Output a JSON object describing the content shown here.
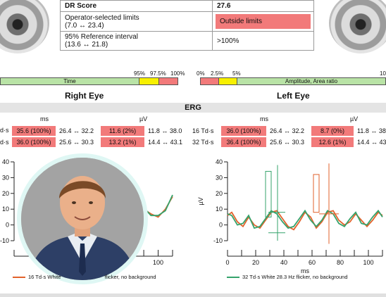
{
  "dr_table": {
    "rows": [
      {
        "label": "DR Score",
        "label_sub": "",
        "value": "27.6",
        "status": "normal"
      },
      {
        "label": "Operator-selected limits",
        "label_sub": "(7.0 ↔ 23.4)",
        "value": "Outside limits",
        "status": "outside"
      },
      {
        "label": "95% Reference interval",
        "label_sub": "(13.6 ↔ 21.8)",
        "value": ">100%",
        "status": "normal"
      }
    ]
  },
  "scales": {
    "left": {
      "ticks": [
        "95%",
        "97.5%",
        "100%"
      ],
      "label": "Time"
    },
    "right": {
      "ticks": [
        "0%",
        "2.5%",
        "5%",
        "10"
      ],
      "label": "Amplitude, Area ratio"
    }
  },
  "headings": {
    "right_eye": "Right Eye",
    "left_eye": "Left Eye",
    "erg": "ERG"
  },
  "erg": {
    "col_ms": "ms",
    "col_uv": "µV",
    "right_rows": [
      {
        "stim": "d·s",
        "ms": "35.6 (100%)",
        "ms_range": "26.4 ↔ 32.2",
        "uv": "11.6 (2%)",
        "uv_range": "11.8 ↔ 38.0"
      },
      {
        "stim": "d·s",
        "ms": "36.0 (100%)",
        "ms_range": "25.6 ↔ 30.3",
        "uv": "13.2 (1%)",
        "uv_range": "14.4 ↔ 43.1"
      }
    ],
    "left_rows": [
      {
        "stim": "16 Td·s",
        "ms": "36.0 (100%)",
        "ms_range": "26.4 ↔ 32.2",
        "uv": "8.7 (0%)",
        "uv_range": "11.8 ↔ 38"
      },
      {
        "stim": "32 Td·s",
        "ms": "36.4 (100%)",
        "ms_range": "25.6 ↔ 30.3",
        "uv": "12.6 (1%)",
        "uv_range": "14.4 ↔ 43"
      }
    ]
  },
  "chart_data": [
    {
      "type": "line",
      "title": "",
      "xlabel": "",
      "ylabel": "",
      "xlim": [
        0,
        110
      ],
      "ylim": [
        -10,
        40
      ],
      "yticks": [
        40,
        30,
        20,
        10,
        0,
        -10
      ],
      "xticks": [
        100
      ],
      "series": [
        {
          "name": "16 Td·s White",
          "color": "#e2622b",
          "x": [
            80,
            85,
            90,
            95,
            100,
            105,
            110
          ],
          "y": [
            8,
            6,
            10,
            7,
            5,
            10,
            18
          ]
        },
        {
          "name": "",
          "color": "#35a36b",
          "x": [
            80,
            85,
            90,
            95,
            100,
            105,
            110
          ],
          "y": [
            9,
            5,
            11,
            6,
            6,
            9,
            19
          ]
        }
      ],
      "legend_visible": "16 Td·s White",
      "legend_tail": "flicker, no background"
    },
    {
      "type": "line",
      "title": "",
      "xlabel": "ms",
      "ylabel": "µV",
      "xlim": [
        0,
        110
      ],
      "ylim": [
        -10,
        40
      ],
      "yticks": [
        40,
        30,
        20,
        10,
        0,
        -10
      ],
      "xticks": [
        0,
        20,
        40,
        60,
        80,
        100
      ],
      "series": [
        {
          "name": "",
          "color": "#e2622b",
          "x": [
            0,
            3,
            7,
            11,
            15,
            19,
            23,
            27,
            31,
            35,
            39,
            43,
            47,
            51,
            55,
            59,
            63,
            67,
            71,
            75,
            79,
            83,
            87,
            91,
            95,
            99,
            103,
            107,
            110
          ],
          "y": [
            6,
            8,
            2,
            -1,
            5,
            0,
            -2,
            3,
            8,
            9,
            4,
            -1,
            -3,
            2,
            8,
            5,
            -2,
            2,
            8,
            9,
            3,
            0,
            2,
            7,
            3,
            -1,
            3,
            8,
            6
          ]
        },
        {
          "name": "32 Td·s White 28.3 Hz flicker, no background",
          "color": "#35a36b",
          "x": [
            0,
            3,
            7,
            11,
            15,
            19,
            23,
            27,
            31,
            35,
            39,
            43,
            47,
            51,
            55,
            59,
            63,
            67,
            71,
            75,
            79,
            83,
            87,
            91,
            95,
            99,
            103,
            107,
            110
          ],
          "y": [
            7,
            6,
            0,
            1,
            6,
            -2,
            -1,
            4,
            9,
            7,
            2,
            -2,
            -1,
            4,
            9,
            3,
            -1,
            3,
            9,
            7,
            1,
            -1,
            4,
            8,
            1,
            0,
            5,
            9,
            5
          ]
        }
      ],
      "legend_visible": "32 Td·s White 28.3 Hz flicker, no background"
    }
  ],
  "colors": {
    "outside": "#f27a7a",
    "warn": "#f7f000",
    "ok": "#b9e3a6",
    "green": "#35a36b",
    "orange": "#e2622b"
  }
}
